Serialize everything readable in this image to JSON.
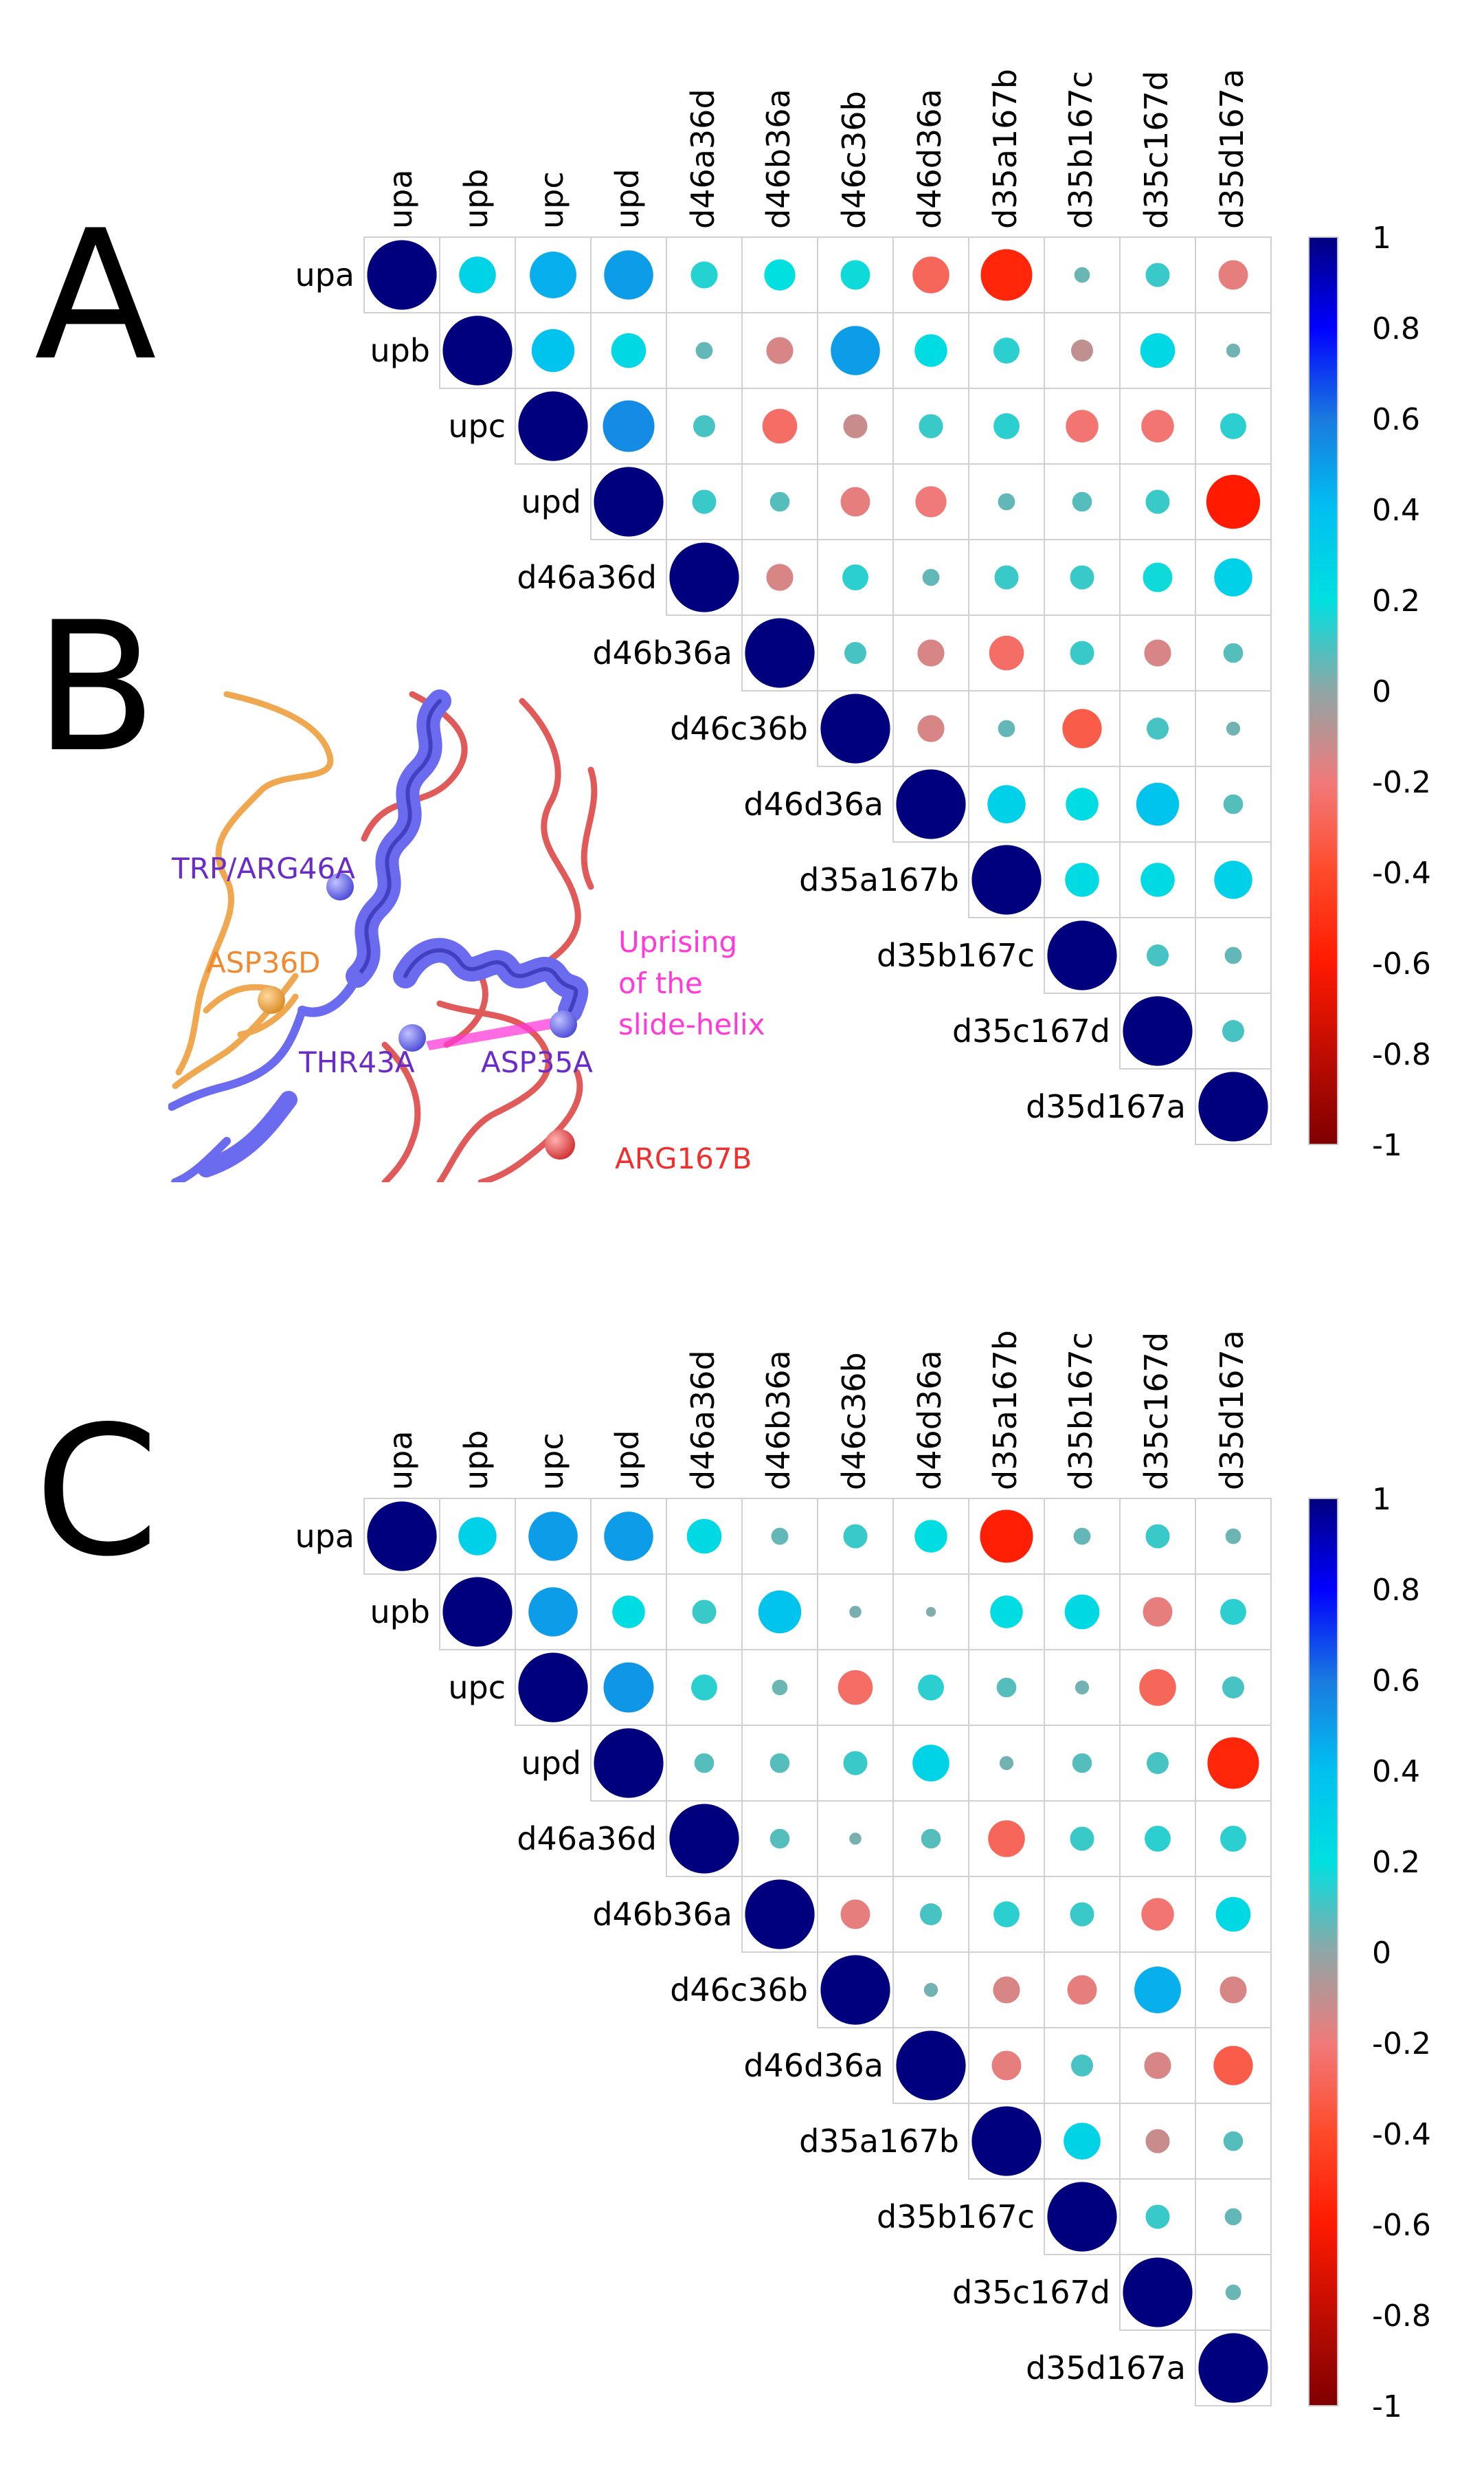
{
  "panel_letters": {
    "a": "A",
    "b": "B",
    "c": "C"
  },
  "chart_data": [
    {
      "type": "heatmap",
      "subtype": "correlation-circle-upper-triangle",
      "panel": "A",
      "labels": [
        "upa",
        "upb",
        "upc",
        "upd",
        "d46a36d",
        "d46b36a",
        "d46c36b",
        "d46d36a",
        "d35a167b",
        "d35b167c",
        "d35c167d",
        "d35d167a"
      ],
      "matrix": [
        [
          1,
          0.28,
          0.45,
          0.5,
          0.15,
          0.2,
          0.18,
          -0.28,
          -0.55,
          0.05,
          0.12,
          -0.18
        ],
        [
          null,
          1,
          0.38,
          0.25,
          0.06,
          -0.15,
          0.5,
          0.22,
          0.14,
          -0.1,
          0.25,
          0.04
        ],
        [
          null,
          null,
          1,
          0.55,
          0.1,
          -0.25,
          -0.12,
          0.12,
          0.14,
          -0.22,
          -0.22,
          0.14
        ],
        [
          null,
          null,
          null,
          1,
          0.12,
          0.08,
          -0.18,
          -0.2,
          0.06,
          0.08,
          0.12,
          -0.6
        ],
        [
          null,
          null,
          null,
          null,
          1,
          -0.15,
          0.14,
          0.06,
          0.12,
          0.12,
          0.18,
          0.3
        ],
        [
          null,
          null,
          null,
          null,
          null,
          1,
          0.1,
          -0.15,
          -0.25,
          0.12,
          -0.15,
          0.08
        ],
        [
          null,
          null,
          null,
          null,
          null,
          null,
          1,
          -0.15,
          0.06,
          -0.32,
          0.1,
          0.04
        ],
        [
          null,
          null,
          null,
          null,
          null,
          null,
          null,
          1,
          0.3,
          0.22,
          0.38,
          0.08
        ],
        [
          null,
          null,
          null,
          null,
          null,
          null,
          null,
          null,
          1,
          0.24,
          0.24,
          0.3
        ],
        [
          null,
          null,
          null,
          null,
          null,
          null,
          null,
          null,
          null,
          1,
          0.1,
          0.06
        ],
        [
          null,
          null,
          null,
          null,
          null,
          null,
          null,
          null,
          null,
          null,
          1,
          0.1
        ],
        [
          null,
          null,
          null,
          null,
          null,
          null,
          null,
          null,
          null,
          null,
          null,
          1
        ]
      ],
      "colorbar": {
        "range": [
          -1,
          1
        ],
        "ticks": [
          "1",
          "0.8",
          "0.6",
          "0.4",
          "0.2",
          "0",
          "-0.2",
          "-0.4",
          "-0.6",
          "-0.8",
          "-1"
        ]
      }
    },
    {
      "type": "heatmap",
      "subtype": "correlation-circle-upper-triangle",
      "panel": "C",
      "labels": [
        "upa",
        "upb",
        "upc",
        "upd",
        "d46a36d",
        "d46b36a",
        "d46c36b",
        "d46d36a",
        "d35a167b",
        "d35b167c",
        "d35c167d",
        "d35d167a"
      ],
      "matrix": [
        [
          1,
          0.3,
          0.5,
          0.5,
          0.25,
          0.06,
          0.12,
          0.22,
          -0.58,
          0.06,
          0.12,
          0.05
        ],
        [
          null,
          1,
          0.5,
          0.22,
          0.12,
          0.38,
          0.03,
          0.02,
          0.22,
          0.25,
          -0.18,
          0.14
        ],
        [
          null,
          null,
          1,
          0.52,
          0.14,
          0.05,
          -0.25,
          0.14,
          0.08,
          0.04,
          -0.28,
          0.1
        ],
        [
          null,
          null,
          null,
          1,
          0.08,
          0.08,
          0.12,
          0.28,
          0.04,
          0.08,
          0.1,
          -0.55
        ],
        [
          null,
          null,
          null,
          null,
          1,
          0.08,
          0.03,
          0.08,
          -0.28,
          0.12,
          0.14,
          0.14
        ],
        [
          null,
          null,
          null,
          null,
          null,
          1,
          -0.18,
          0.1,
          0.14,
          0.12,
          -0.22,
          0.25
        ],
        [
          null,
          null,
          null,
          null,
          null,
          null,
          1,
          0.04,
          -0.15,
          -0.18,
          0.45,
          -0.15
        ],
        [
          null,
          null,
          null,
          null,
          null,
          null,
          null,
          1,
          -0.18,
          0.1,
          -0.15,
          -0.32
        ],
        [
          null,
          null,
          null,
          null,
          null,
          null,
          null,
          null,
          1,
          0.28,
          -0.12,
          0.08
        ],
        [
          null,
          null,
          null,
          null,
          null,
          null,
          null,
          null,
          null,
          1,
          0.12,
          0.06
        ],
        [
          null,
          null,
          null,
          null,
          null,
          null,
          null,
          null,
          null,
          null,
          1,
          0.05
        ],
        [
          null,
          null,
          null,
          null,
          null,
          null,
          null,
          null,
          null,
          null,
          null,
          1
        ]
      ],
      "colorbar": {
        "range": [
          -1,
          1
        ],
        "ticks": [
          "1",
          "0.8",
          "0.6",
          "0.4",
          "0.2",
          "0",
          "-0.2",
          "-0.4",
          "-0.6",
          "-0.8",
          "-1"
        ]
      }
    }
  ],
  "structure_panel": {
    "labels": {
      "trp_arg46a": "TRP/ARG46A",
      "asp36d": "ASP36D",
      "thr43a": "THR43A",
      "asp35a": "ASP35A",
      "arg167b": "ARG167B",
      "uprising_line1": "Uprising",
      "uprising_line2": "of the",
      "uprising_line3": "slide-helix"
    },
    "colors": {
      "helix": "#6b6bf0",
      "orange": "#f0a850",
      "red": "#e05a5a",
      "magenta": "#ff3ad8",
      "purple_text": "#6a2cc8",
      "orange_text": "#f08a30",
      "red_text": "#ee3030"
    }
  }
}
